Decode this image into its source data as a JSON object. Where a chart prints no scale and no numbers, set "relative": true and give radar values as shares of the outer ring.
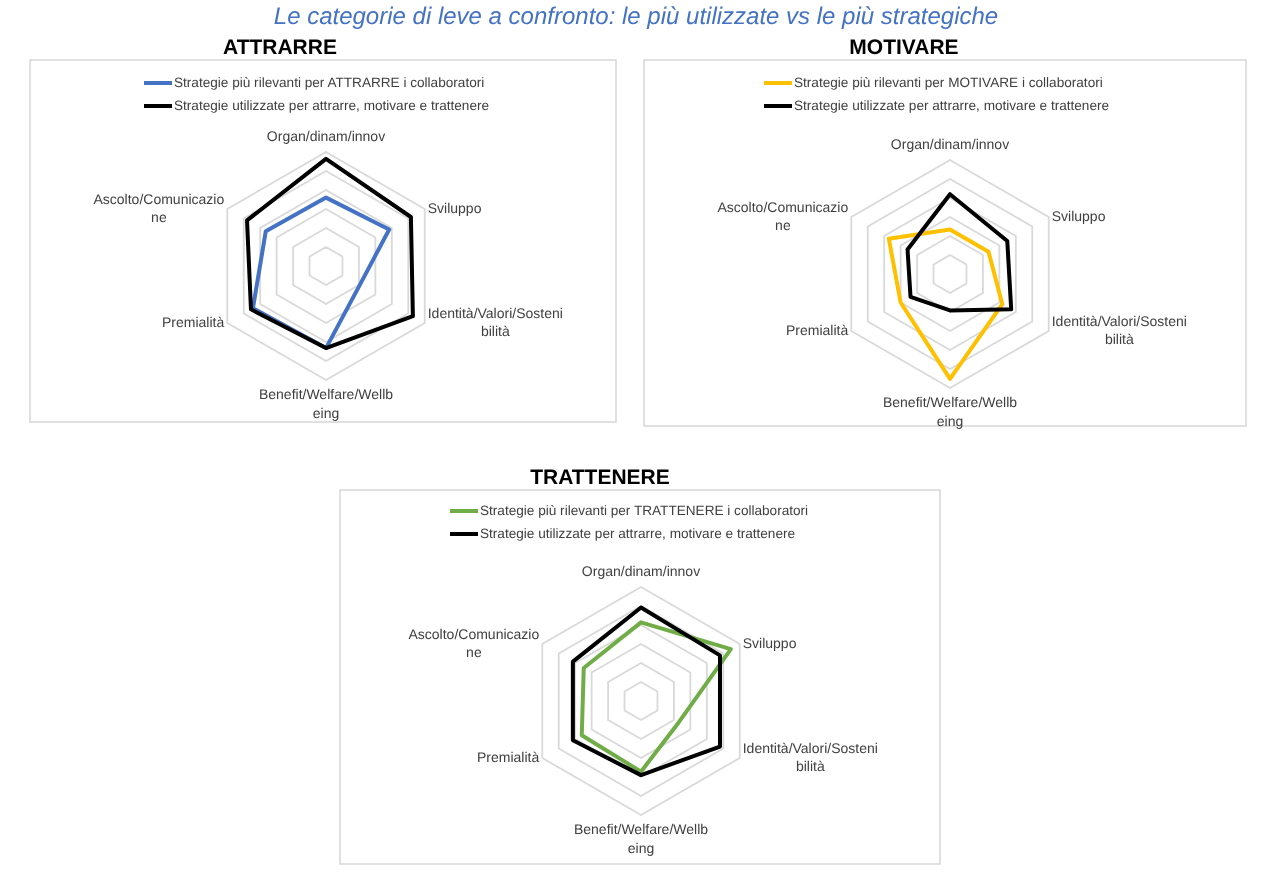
{
  "chart_data": [
    {
      "type": "radar",
      "title": "ATTRARRE",
      "annotations": [
        "Le categorie di leve a confronto: le più utilizzate vs le più strategiche"
      ],
      "categories": [
        "Organ/dinam/innov",
        "Sviluppo",
        "Identità/Valori/Sostenibilità",
        "Benefit/Welfare/Wellbeing",
        "Premialità",
        "Ascolto/Comunicazione"
      ],
      "series": [
        {
          "name": "Strategie più rilevanti per ATTRARRE i collaboratori",
          "color": "#4472c4",
          "values": [
            0.6,
            0.64,
            0.34,
            0.72,
            0.74,
            0.61
          ]
        },
        {
          "name": "Strategie utilizzate per attrarre, motivare e trattenere",
          "color": "#000000",
          "values": [
            0.94,
            0.86,
            0.88,
            0.72,
            0.76,
            0.8
          ]
        }
      ],
      "relative": true,
      "grid": true,
      "legend": "top"
    },
    {
      "type": "radar",
      "title": "MOTIVARE",
      "categories": [
        "Organ/dinam/innov",
        "Sviluppo",
        "Identità/Valori/Sostenibilità",
        "Benefit/Welfare/Wellbeing",
        "Premialità",
        "Ascolto/Comunicazione"
      ],
      "series": [
        {
          "name": "Strategie più rilevanti per MOTIVARE i collaboratori",
          "color": "#ffc000",
          "values": [
            0.39,
            0.39,
            0.53,
            0.92,
            0.5,
            0.62
          ]
        },
        {
          "name": "Strategie utilizzate per attrarre, motivare e trattenere",
          "color": "#000000",
          "values": [
            0.7,
            0.58,
            0.62,
            0.32,
            0.4,
            0.43
          ]
        }
      ],
      "relative": true,
      "grid": true,
      "legend": "top"
    },
    {
      "type": "radar",
      "title": "TRATTENERE",
      "categories": [
        "Organ/dinam/innov",
        "Sviluppo",
        "Identità/Valori/Sostenibilità",
        "Benefit/Welfare/Wellbeing",
        "Premialità",
        "Ascolto/Comunicazione"
      ],
      "series": [
        {
          "name": "Strategie più rilevanti per TRATTENERE i collaboratori",
          "color": "#70ad47",
          "values": [
            0.69,
            0.91,
            0.38,
            0.62,
            0.6,
            0.58
          ]
        },
        {
          "name": "Strategie utilizzate per attrarre, motivare e trattenere",
          "color": "#000000",
          "values": [
            0.82,
            0.8,
            0.8,
            0.65,
            0.69,
            0.69
          ]
        }
      ],
      "relative": true,
      "grid": true,
      "legend": "top"
    }
  ]
}
